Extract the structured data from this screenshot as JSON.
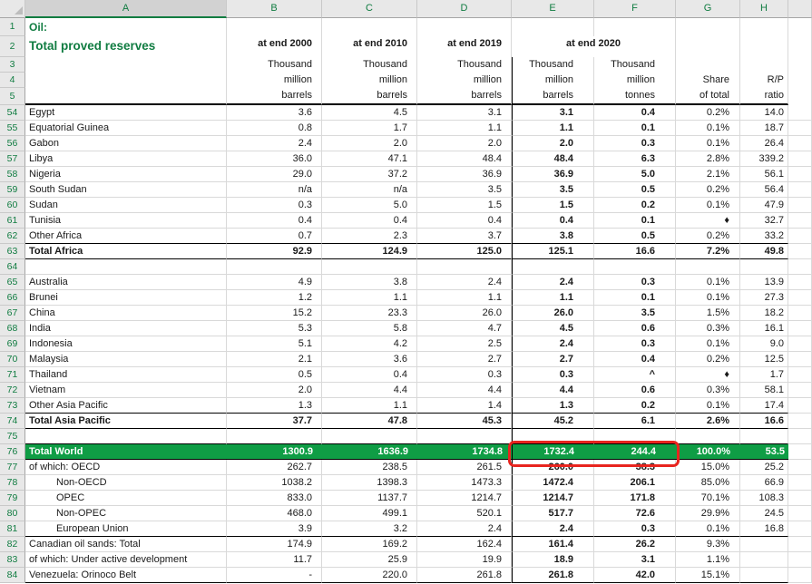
{
  "colors": {
    "theme_green": "#107C41",
    "world_row_fill": "#0F9D45",
    "annotation_red": "#E8251F",
    "gridline": "#D9D9D9"
  },
  "sheet": {
    "column_letters": [
      "A",
      "B",
      "C",
      "D",
      "E",
      "F",
      "G",
      "H"
    ],
    "selected_column": "A",
    "header": {
      "row_numbers": [
        "1",
        "2",
        "3",
        "4",
        "5"
      ],
      "title": "Oil:",
      "subtitle": "Total proved reserves",
      "periods": [
        "at end 2000",
        "at end 2010",
        "at end 2019",
        "at end 2020"
      ],
      "units": {
        "B": [
          "Thousand",
          "million",
          "barrels"
        ],
        "C": [
          "Thousand",
          "million",
          "barrels"
        ],
        "D": [
          "Thousand",
          "million",
          "barrels"
        ],
        "E": [
          "Thousand",
          "million",
          "barrels"
        ],
        "F": [
          "Thousand",
          "million",
          "tonnes"
        ],
        "G": [
          "Share",
          "of total"
        ],
        "H": [
          "R/P",
          "ratio"
        ]
      }
    },
    "rows": [
      {
        "n": 54,
        "label": "Egypt",
        "values": [
          "3.6",
          "4.5",
          "3.1",
          "3.1",
          "0.4",
          "0.2%",
          "14.0"
        ]
      },
      {
        "n": 55,
        "label": "Equatorial Guinea",
        "values": [
          "0.8",
          "1.7",
          "1.1",
          "1.1",
          "0.1",
          "0.1%",
          "18.7"
        ]
      },
      {
        "n": 56,
        "label": "Gabon",
        "values": [
          "2.4",
          "2.0",
          "2.0",
          "2.0",
          "0.3",
          "0.1%",
          "26.4"
        ]
      },
      {
        "n": 57,
        "label": "Libya",
        "values": [
          "36.0",
          "47.1",
          "48.4",
          "48.4",
          "6.3",
          "2.8%",
          "339.2"
        ]
      },
      {
        "n": 58,
        "label": "Nigeria",
        "values": [
          "29.0",
          "37.2",
          "36.9",
          "36.9",
          "5.0",
          "2.1%",
          "56.1"
        ]
      },
      {
        "n": 59,
        "label": "South Sudan",
        "values": [
          "n/a",
          "n/a",
          "3.5",
          "3.5",
          "0.5",
          "0.2%",
          "56.4"
        ]
      },
      {
        "n": 60,
        "label": "Sudan",
        "values": [
          "0.3",
          "5.0",
          "1.5",
          "1.5",
          "0.2",
          "0.1%",
          "47.9"
        ]
      },
      {
        "n": 61,
        "label": "Tunisia",
        "values": [
          "0.4",
          "0.4",
          "0.4",
          "0.4",
          "0.1",
          "♦",
          "32.7"
        ]
      },
      {
        "n": 62,
        "label": "Other Africa",
        "values": [
          "0.7",
          "2.3",
          "3.7",
          "3.8",
          "0.5",
          "0.2%",
          "33.2"
        ]
      },
      {
        "n": 63,
        "label": "Total Africa",
        "kind": "total",
        "values": [
          "92.9",
          "124.9",
          "125.0",
          "125.1",
          "16.6",
          "7.2%",
          "49.8"
        ]
      },
      {
        "n": 64,
        "label": "",
        "kind": "empty",
        "values": [
          "",
          "",
          "",
          "",
          "",
          "",
          ""
        ]
      },
      {
        "n": 65,
        "label": "Australia",
        "values": [
          "4.9",
          "3.8",
          "2.4",
          "2.4",
          "0.3",
          "0.1%",
          "13.9"
        ]
      },
      {
        "n": 66,
        "label": "Brunei",
        "values": [
          "1.2",
          "1.1",
          "1.1",
          "1.1",
          "0.1",
          "0.1%",
          "27.3"
        ]
      },
      {
        "n": 67,
        "label": "China",
        "values": [
          "15.2",
          "23.3",
          "26.0",
          "26.0",
          "3.5",
          "1.5%",
          "18.2"
        ]
      },
      {
        "n": 68,
        "label": "India",
        "values": [
          "5.3",
          "5.8",
          "4.7",
          "4.5",
          "0.6",
          "0.3%",
          "16.1"
        ]
      },
      {
        "n": 69,
        "label": "Indonesia",
        "values": [
          "5.1",
          "4.2",
          "2.5",
          "2.4",
          "0.3",
          "0.1%",
          "9.0"
        ]
      },
      {
        "n": 70,
        "label": "Malaysia",
        "values": [
          "2.1",
          "3.6",
          "2.7",
          "2.7",
          "0.4",
          "0.2%",
          "12.5"
        ]
      },
      {
        "n": 71,
        "label": "Thailand",
        "values": [
          "0.5",
          "0.4",
          "0.3",
          "0.3",
          "^",
          "♦",
          "1.7"
        ]
      },
      {
        "n": 72,
        "label": "Vietnam",
        "values": [
          "2.0",
          "4.4",
          "4.4",
          "4.4",
          "0.6",
          "0.3%",
          "58.1"
        ]
      },
      {
        "n": 73,
        "label": "Other Asia Pacific",
        "values": [
          "1.3",
          "1.1",
          "1.4",
          "1.3",
          "0.2",
          "0.1%",
          "17.4"
        ]
      },
      {
        "n": 74,
        "label": "Total Asia Pacific",
        "kind": "total",
        "values": [
          "37.7",
          "47.8",
          "45.3",
          "45.2",
          "6.1",
          "2.6%",
          "16.6"
        ]
      },
      {
        "n": 75,
        "label": "",
        "kind": "empty",
        "values": [
          "",
          "",
          "",
          "",
          "",
          "",
          ""
        ]
      },
      {
        "n": 76,
        "label": "Total World",
        "kind": "world",
        "values": [
          "1300.9",
          "1636.9",
          "1734.8",
          "1732.4",
          "244.4",
          "100.0%",
          "53.5"
        ]
      },
      {
        "n": 77,
        "label": "of which: OECD",
        "values": [
          "262.7",
          "238.5",
          "261.5",
          "260.0",
          "38.3",
          "15.0%",
          "25.2"
        ]
      },
      {
        "n": 78,
        "label": "Non-OECD",
        "indent": true,
        "values": [
          "1038.2",
          "1398.3",
          "1473.3",
          "1472.4",
          "206.1",
          "85.0%",
          "66.9"
        ]
      },
      {
        "n": 79,
        "label": "OPEC",
        "indent": true,
        "values": [
          "833.0",
          "1137.7",
          "1214.7",
          "1214.7",
          "171.8",
          "70.1%",
          "108.3"
        ]
      },
      {
        "n": 80,
        "label": "Non-OPEC",
        "indent": true,
        "values": [
          "468.0",
          "499.1",
          "520.1",
          "517.7",
          "72.6",
          "29.9%",
          "24.5"
        ]
      },
      {
        "n": 81,
        "label": "European Union",
        "indent": true,
        "separator_below": true,
        "values": [
          "3.9",
          "3.2",
          "2.4",
          "2.4",
          "0.3",
          "0.1%",
          "16.8"
        ]
      },
      {
        "n": 82,
        "label": "Canadian oil sands: Total",
        "values": [
          "174.9",
          "169.2",
          "162.4",
          "161.4",
          "26.2",
          "9.3%",
          ""
        ]
      },
      {
        "n": 83,
        "label": "of which: Under active development",
        "values": [
          "11.7",
          "25.9",
          "19.9",
          "18.9",
          "3.1",
          "1.1%",
          ""
        ]
      },
      {
        "n": 84,
        "label": "Venezuela: Orinoco Belt",
        "separator_below": true,
        "values": [
          "-",
          "220.0",
          "261.8",
          "261.8",
          "42.0",
          "15.1%",
          ""
        ]
      }
    ]
  },
  "annotation": {
    "target": "E76:F76",
    "highlighted_values": [
      "1732.4",
      "244.4"
    ],
    "color": "#E8251F"
  }
}
